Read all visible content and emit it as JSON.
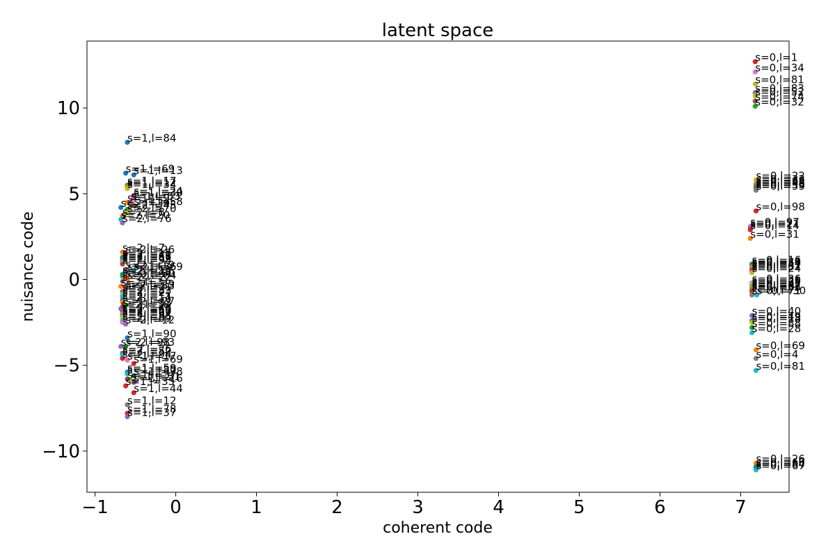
{
  "chart_data": {
    "type": "scatter",
    "title": "latent space",
    "xlabel": "coherent code",
    "ylabel": "nuisance code",
    "xlim": [
      -1.1,
      7.6
    ],
    "ylim": [
      -12.4,
      13.9
    ],
    "xticks": [
      -1,
      0,
      1,
      2,
      3,
      4,
      5,
      6,
      7
    ],
    "yticks": [
      -10,
      -5,
      0,
      5,
      10
    ],
    "xtick_labels": [
      "−1",
      "0",
      "1",
      "2",
      "3",
      "4",
      "5",
      "6",
      "7"
    ],
    "ytick_labels": [
      "−10",
      "−5",
      "0",
      "5",
      "10"
    ],
    "grid": false,
    "legend": "none",
    "palette": [
      "#1f77b4",
      "#ff7f0e",
      "#2ca02c",
      "#d62728",
      "#9467bd",
      "#8c564b",
      "#e377c2",
      "#7f7f7f",
      "#bcbd22",
      "#17becf"
    ],
    "points": [
      {
        "x": -0.6,
        "y": 8.0,
        "label": "s=1,l=84",
        "color": "#1f77b4"
      },
      {
        "x": -0.62,
        "y": 6.2,
        "label": "s=1,l=69",
        "color": "#1f77b4"
      },
      {
        "x": -0.52,
        "y": 6.1,
        "label": "s=1,l=13",
        "color": "#1f77b4"
      },
      {
        "x": -0.6,
        "y": 5.5,
        "label": "s=1,l=17",
        "color": "#2ca02c"
      },
      {
        "x": -0.6,
        "y": 5.4,
        "label": "s=1,l=12",
        "color": "#ff7f0e"
      },
      {
        "x": -0.6,
        "y": 5.3,
        "label": "s=1,l=34",
        "color": "#bcbd22"
      },
      {
        "x": -0.52,
        "y": 4.9,
        "label": "s=1,l=24",
        "color": "#d62728"
      },
      {
        "x": -0.52,
        "y": 4.8,
        "label": "s=1,l=30",
        "color": "#9467bd"
      },
      {
        "x": -0.55,
        "y": 4.6,
        "label": "s=1,l=53",
        "color": "#e377c2"
      },
      {
        "x": -0.6,
        "y": 4.5,
        "label": "s=1,l=9",
        "color": "#ff7f0e"
      },
      {
        "x": -0.52,
        "y": 4.3,
        "label": "s=1,l=58",
        "color": "#8c564b"
      },
      {
        "x": -0.68,
        "y": 4.2,
        "label": "s=2,l=39",
        "color": "#1f77b4"
      },
      {
        "x": -0.6,
        "y": 4.1,
        "label": "s=2,l=45",
        "color": "#2ca02c"
      },
      {
        "x": -0.6,
        "y": 3.9,
        "label": "s=2,l=70",
        "color": "#bcbd22"
      },
      {
        "x": -0.66,
        "y": 3.7,
        "label": "s=2,l=8",
        "color": "#ff7f0e"
      },
      {
        "x": -0.68,
        "y": 3.5,
        "label": "s=2,l=20",
        "color": "#17becf"
      },
      {
        "x": -0.66,
        "y": 3.3,
        "label": "s=2,l=76",
        "color": "#9467bd"
      },
      {
        "x": -0.66,
        "y": 1.6,
        "label": "s=2,l=7",
        "color": "#ff7f0e"
      },
      {
        "x": -0.62,
        "y": 1.5,
        "label": "s=2,l=26",
        "color": "#d62728"
      },
      {
        "x": -0.66,
        "y": 1.3,
        "label": "s=2,l=15",
        "color": "#2ca02c"
      },
      {
        "x": -0.66,
        "y": 1.2,
        "label": "s=2,l=41",
        "color": "#1f77b4"
      },
      {
        "x": -0.66,
        "y": 1.1,
        "label": "s=2,l=58",
        "color": "#9467bd"
      },
      {
        "x": -0.66,
        "y": 1.0,
        "label": "s=2,l=62",
        "color": "#bcbd22"
      },
      {
        "x": -0.66,
        "y": 0.9,
        "label": "s=2,l=95",
        "color": "#8c564b"
      },
      {
        "x": -0.62,
        "y": 0.6,
        "label": "s=2,l=19",
        "color": "#e377c2"
      },
      {
        "x": -0.6,
        "y": 0.5,
        "label": "s=2,l=36",
        "color": "#7f7f7f"
      },
      {
        "x": -0.52,
        "y": 0.5,
        "label": "s=1,l=69",
        "color": "#17becf"
      },
      {
        "x": -0.66,
        "y": 0.3,
        "label": "s=2,l=13",
        "color": "#1f77b4"
      },
      {
        "x": -0.66,
        "y": 0.2,
        "label": "s=2,l=48",
        "color": "#2ca02c"
      },
      {
        "x": -0.62,
        "y": 0.1,
        "label": "s=2,l=50",
        "color": "#d62728"
      },
      {
        "x": -0.6,
        "y": 0.0,
        "label": "s=2,l=64",
        "color": "#ff7f0e"
      },
      {
        "x": -0.66,
        "y": -0.1,
        "label": "s=2,l=22",
        "color": "#9467bd"
      },
      {
        "x": -0.68,
        "y": -0.4,
        "label": "s=2,l=3",
        "color": "#ff7f0e"
      },
      {
        "x": -0.62,
        "y": -0.5,
        "label": "s=2,l=29",
        "color": "#8c564b"
      },
      {
        "x": -0.62,
        "y": -0.6,
        "label": "s=2,l=53",
        "color": "#e377c2"
      },
      {
        "x": -0.66,
        "y": -0.7,
        "label": "s=2,l=71",
        "color": "#7f7f7f"
      },
      {
        "x": -0.66,
        "y": -0.9,
        "label": "s=2,l=83",
        "color": "#bcbd22"
      },
      {
        "x": -0.66,
        "y": -1.0,
        "label": "s=2,l=2",
        "color": "#17becf"
      },
      {
        "x": -0.66,
        "y": -1.2,
        "label": "s=2,l=11",
        "color": "#1f77b4"
      },
      {
        "x": -0.66,
        "y": -1.3,
        "label": "s=2,l=14",
        "color": "#ff7f0e"
      },
      {
        "x": -0.62,
        "y": -1.5,
        "label": "s=2,l=27",
        "color": "#2ca02c"
      },
      {
        "x": -0.66,
        "y": -1.6,
        "label": "s=2,l=33",
        "color": "#d62728"
      },
      {
        "x": -0.68,
        "y": -1.7,
        "label": "s=2,l=38",
        "color": "#9467bd"
      },
      {
        "x": -0.66,
        "y": -1.9,
        "label": "s=2,l=46",
        "color": "#8c564b"
      },
      {
        "x": -0.66,
        "y": -2.0,
        "label": "s=2,l=57",
        "color": "#e377c2"
      },
      {
        "x": -0.66,
        "y": -2.1,
        "label": "s=2,l=60",
        "color": "#7f7f7f"
      },
      {
        "x": -0.66,
        "y": -2.2,
        "label": "s=2,l=67",
        "color": "#bcbd22"
      },
      {
        "x": -0.66,
        "y": -2.4,
        "label": "s=2,l=85",
        "color": "#17becf"
      },
      {
        "x": -0.66,
        "y": -2.5,
        "label": "s=2,l=89",
        "color": "#e377c2"
      },
      {
        "x": -0.62,
        "y": -2.6,
        "label": "s=2,l=12",
        "color": "#9467bd"
      },
      {
        "x": -0.6,
        "y": -3.4,
        "label": "s=1,l=90",
        "color": "#1f77b4"
      },
      {
        "x": -0.68,
        "y": -3.9,
        "label": "s=2,l=98",
        "color": "#9467bd"
      },
      {
        "x": -0.62,
        "y": -3.9,
        "label": "s=2,l=93",
        "color": "#2ca02c"
      },
      {
        "x": -0.66,
        "y": -4.3,
        "label": "s=2,l=26",
        "color": "#8c564b"
      },
      {
        "x": -0.66,
        "y": -4.4,
        "label": "s=2,l=52",
        "color": "#17becf"
      },
      {
        "x": -0.66,
        "y": -4.6,
        "label": "s=2,l=94",
        "color": "#d62728"
      },
      {
        "x": -0.6,
        "y": -4.7,
        "label": "s=1,l=17",
        "color": "#e377c2"
      },
      {
        "x": -0.52,
        "y": -4.9,
        "label": "s=1,l=69",
        "color": "#d62728"
      },
      {
        "x": -0.6,
        "y": -5.4,
        "label": "s=1,l=59",
        "color": "#1f77b4"
      },
      {
        "x": -0.6,
        "y": -5.5,
        "label": "s=1,l=80",
        "color": "#17becf"
      },
      {
        "x": -0.52,
        "y": -5.6,
        "label": "s=1,l=78",
        "color": "#2ca02c"
      },
      {
        "x": -0.6,
        "y": -5.8,
        "label": "s=1,l=37",
        "color": "#8c564b"
      },
      {
        "x": -0.55,
        "y": -5.9,
        "label": "s=1,l=51",
        "color": "#bcbd22"
      },
      {
        "x": -0.52,
        "y": -6.0,
        "label": "s=1,l=16",
        "color": "#9467bd"
      },
      {
        "x": -0.62,
        "y": -6.2,
        "label": "s=1,l=35",
        "color": "#d62728"
      },
      {
        "x": -0.52,
        "y": -6.6,
        "label": "s=1,l=44",
        "color": "#d62728"
      },
      {
        "x": -0.6,
        "y": -7.3,
        "label": "s=1,l=12",
        "color": "#7f7f7f"
      },
      {
        "x": -0.6,
        "y": -7.8,
        "label": "s=1,l=78",
        "color": "#d62728"
      },
      {
        "x": -0.6,
        "y": -8.0,
        "label": "s=1,l=37",
        "color": "#9467bd"
      },
      {
        "x": 7.18,
        "y": 12.7,
        "label": "s=0,l=1",
        "color": "#d62728"
      },
      {
        "x": 7.18,
        "y": 12.1,
        "label": "s=0,l=34",
        "color": "#e377c2"
      },
      {
        "x": 7.18,
        "y": 11.4,
        "label": "s=0,l=81",
        "color": "#bcbd22"
      },
      {
        "x": 7.18,
        "y": 10.9,
        "label": "s=0,l=83",
        "color": "#7f7f7f"
      },
      {
        "x": 7.18,
        "y": 10.7,
        "label": "s=0,l=52",
        "color": "#bcbd22"
      },
      {
        "x": 7.18,
        "y": 10.4,
        "label": "s=0,l=74",
        "color": "#8c564b"
      },
      {
        "x": 7.18,
        "y": 10.1,
        "label": "s=0,l=32",
        "color": "#2ca02c"
      },
      {
        "x": 7.19,
        "y": 5.8,
        "label": "s=0,l=22",
        "color": "#bcbd22"
      },
      {
        "x": 7.19,
        "y": 5.6,
        "label": "s=0,l=33",
        "color": "#ff7f0e"
      },
      {
        "x": 7.19,
        "y": 5.5,
        "label": "s=0,l=63",
        "color": "#9467bd"
      },
      {
        "x": 7.19,
        "y": 5.4,
        "label": "s=0,l=48",
        "color": "#2ca02c"
      },
      {
        "x": 7.19,
        "y": 5.3,
        "label": "s=0,l=55",
        "color": "#8c564b"
      },
      {
        "x": 7.19,
        "y": 5.2,
        "label": "s=0,l=59",
        "color": "#7f7f7f"
      },
      {
        "x": 7.19,
        "y": 4.0,
        "label": "s=0,l=98",
        "color": "#d62728"
      },
      {
        "x": 7.12,
        "y": 3.1,
        "label": "s=0,l=97",
        "color": "#e377c2"
      },
      {
        "x": 7.12,
        "y": 3.0,
        "label": "s=0,l=21",
        "color": "#9467bd"
      },
      {
        "x": 7.12,
        "y": 2.9,
        "label": "s=0,l=14",
        "color": "#d62728"
      },
      {
        "x": 7.12,
        "y": 2.4,
        "label": "s=0,l=31",
        "color": "#ff7f0e"
      },
      {
        "x": 7.14,
        "y": 0.9,
        "label": "s=0,l=16",
        "color": "#1f77b4"
      },
      {
        "x": 7.14,
        "y": 0.8,
        "label": "s=0,l=36",
        "color": "#2ca02c"
      },
      {
        "x": 7.14,
        "y": 0.7,
        "label": "s=0,l=54",
        "color": "#ff7f0e"
      },
      {
        "x": 7.14,
        "y": 0.6,
        "label": "s=0,l=41",
        "color": "#9467bd"
      },
      {
        "x": 7.14,
        "y": 0.5,
        "label": "s=0,l=87",
        "color": "#d62728"
      },
      {
        "x": 7.14,
        "y": 0.4,
        "label": "s=0,l=24",
        "color": "#bcbd22"
      },
      {
        "x": 7.14,
        "y": -0.2,
        "label": "s=0,l=36",
        "color": "#e377c2"
      },
      {
        "x": 7.14,
        "y": -0.3,
        "label": "s=0,l=28",
        "color": "#bcbd22"
      },
      {
        "x": 7.14,
        "y": -0.4,
        "label": "s=0,l=61",
        "color": "#17becf"
      },
      {
        "x": 7.14,
        "y": -0.5,
        "label": "s=0,l=47",
        "color": "#ff7f0e"
      },
      {
        "x": 7.14,
        "y": -0.6,
        "label": "s=0,l=62",
        "color": "#2ca02c"
      },
      {
        "x": 7.14,
        "y": -0.7,
        "label": "s=0,l=65",
        "color": "#d62728"
      },
      {
        "x": 7.14,
        "y": -0.9,
        "label": "s=0,l=71",
        "color": "#7f7f7f"
      },
      {
        "x": 7.2,
        "y": -0.9,
        "label": "s=0,l=30",
        "color": "#17becf"
      },
      {
        "x": 7.14,
        "y": -2.1,
        "label": "s=0,l=40",
        "color": "#9467bd"
      },
      {
        "x": 7.14,
        "y": -2.4,
        "label": "s=0,l=49",
        "color": "#1f77b4"
      },
      {
        "x": 7.14,
        "y": -2.5,
        "label": "s=0,l=18",
        "color": "#bcbd22"
      },
      {
        "x": 7.14,
        "y": -2.8,
        "label": "s=0,l=88",
        "color": "#2ca02c"
      },
      {
        "x": 7.14,
        "y": -3.1,
        "label": "s=0,l=28",
        "color": "#17becf"
      },
      {
        "x": 7.19,
        "y": -4.1,
        "label": "s=0,l=69",
        "color": "#ff7f0e"
      },
      {
        "x": 7.19,
        "y": -4.6,
        "label": "s=0,l=4",
        "color": "#7f7f7f"
      },
      {
        "x": 7.19,
        "y": -5.3,
        "label": "s=0,l=81",
        "color": "#17becf"
      },
      {
        "x": 7.19,
        "y": -10.7,
        "label": "s=0,l=26",
        "color": "#ff7f0e"
      },
      {
        "x": 7.19,
        "y": -10.9,
        "label": "s=0,l=60",
        "color": "#2ca02c"
      },
      {
        "x": 7.19,
        "y": -11.0,
        "label": "s=0,l=84",
        "color": "#1f77b4"
      },
      {
        "x": 7.19,
        "y": -11.1,
        "label": "s=0,l=67",
        "color": "#17becf"
      }
    ]
  }
}
